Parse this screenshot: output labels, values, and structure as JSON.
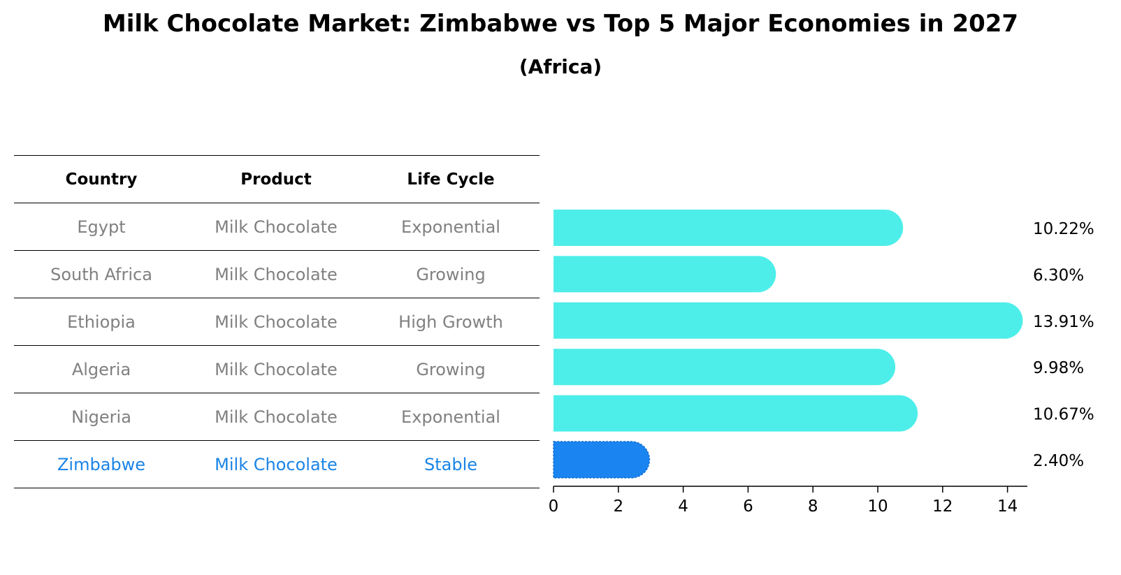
{
  "title": "Milk Chocolate Market: Zimbabwe vs Top 5 Major Economies in 2027",
  "subtitle": "(Africa)",
  "table": {
    "headers": [
      "Country",
      "Product",
      "Life Cycle"
    ],
    "rows": [
      {
        "country": "Egypt",
        "product": "Milk Chocolate",
        "life_cycle": "Exponential"
      },
      {
        "country": "South Africa",
        "product": "Milk Chocolate",
        "life_cycle": "Growing"
      },
      {
        "country": "Ethiopia",
        "product": "Milk Chocolate",
        "life_cycle": "High Growth"
      },
      {
        "country": "Algeria",
        "product": "Milk Chocolate",
        "life_cycle": "Growing"
      },
      {
        "country": "Nigeria",
        "product": "Milk Chocolate",
        "life_cycle": "Exponential"
      },
      {
        "country": "Zimbabwe",
        "product": "Milk Chocolate",
        "life_cycle": "Stable"
      }
    ]
  },
  "colors": {
    "bar": "#4deee9",
    "highlight_bar": "#1a84f0",
    "highlight_text": "#1a84e6",
    "muted_text": "#808080"
  },
  "chart_data": {
    "type": "bar",
    "orientation": "horizontal",
    "categories": [
      "Egypt",
      "South Africa",
      "Ethiopia",
      "Algeria",
      "Nigeria",
      "Zimbabwe"
    ],
    "values": [
      10.22,
      6.3,
      13.91,
      9.98,
      10.67,
      2.4
    ],
    "value_labels": [
      "10.22%",
      "6.30%",
      "13.91%",
      "9.98%",
      "10.67%",
      "2.40%"
    ],
    "highlight": "Zimbabwe",
    "xlim": [
      0,
      14.6
    ],
    "xticks": [
      0,
      2,
      4,
      6,
      8,
      10,
      12,
      14
    ],
    "grid": false
  }
}
